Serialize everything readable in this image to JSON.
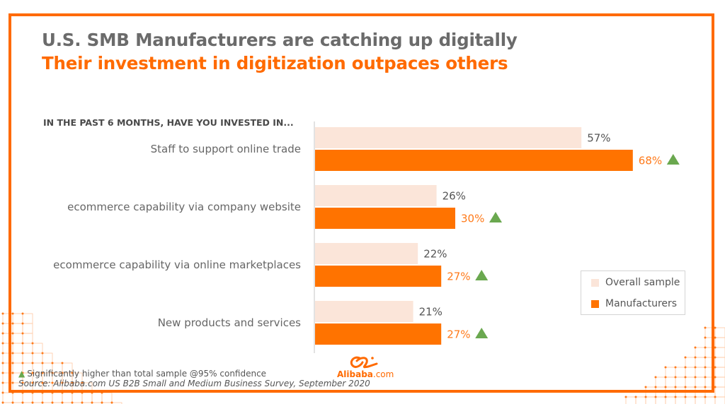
{
  "slide": {
    "title": "U.S. SMB Manufacturers are catching up digitally",
    "subtitle": "Their investment in digitization outpaces others",
    "question": "IN THE PAST 6 MONTHS, HAVE YOU INVESTED IN...",
    "footnote": "Significantly higher than total sample @95% confidence",
    "source": "Source: Alibaba.com US B2B Small and Medium Business Survey, September 2020",
    "logo": {
      "brand": "Alibaba",
      "suffix": ".com",
      "icon": "alibaba-logo-icon"
    },
    "colors": {
      "accent": "#ff6a00",
      "overall": "#fbe5d9",
      "manufacturers": "#ff7300",
      "significance": "#6aa84f",
      "title_gray": "#6b6b6b"
    }
  },
  "legend": {
    "items": [
      {
        "label": "Overall sample",
        "color": "#fbe5d9"
      },
      {
        "label": "Manufacturers",
        "color": "#ff7300"
      }
    ],
    "placement": "bottom-right"
  },
  "chart_data": {
    "type": "bar",
    "orientation": "horizontal",
    "title": "IN THE PAST 6 MONTHS, HAVE YOU INVESTED IN...",
    "xlabel": "",
    "ylabel": "",
    "xlim": [
      0,
      70
    ],
    "grid": false,
    "categories": [
      "Staff to support online trade",
      "ecommerce capability via company website",
      "ecommerce capability via online marketplaces",
      "New products and services"
    ],
    "series": [
      {
        "name": "Overall sample",
        "values": [
          57,
          26,
          22,
          21
        ],
        "labels": [
          "57%",
          "26%",
          "22%",
          "21%"
        ],
        "color": "#fbe5d9"
      },
      {
        "name": "Manufacturers",
        "values": [
          68,
          30,
          27,
          27
        ],
        "labels": [
          "68%",
          "30%",
          "27%",
          "27%"
        ],
        "color": "#ff7300",
        "significant": [
          true,
          true,
          true,
          true
        ]
      }
    ],
    "legend": [
      "Overall sample",
      "Manufacturers"
    ],
    "legend_position": "bottom-right",
    "annotation": "▲ Significantly higher than total sample @95% confidence"
  }
}
